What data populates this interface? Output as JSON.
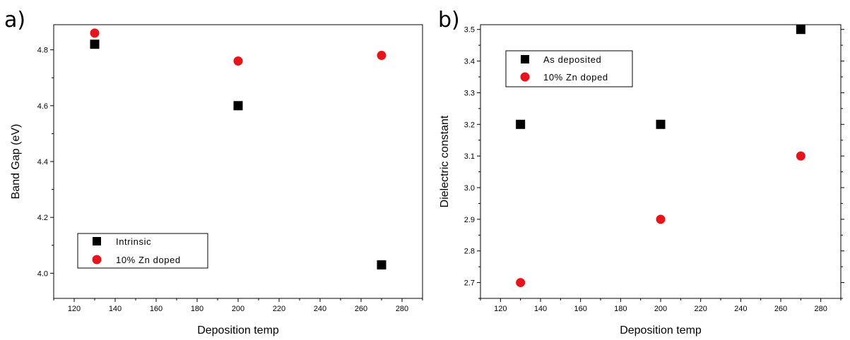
{
  "chart_data": [
    {
      "panel_label": "a)",
      "type": "scatter",
      "xlabel": "Deposition temp",
      "ylabel": "Band Gap (eV)",
      "xlim": [
        110,
        290
      ],
      "ylim": [
        3.91,
        4.89
      ],
      "x_ticks": [
        120,
        140,
        160,
        180,
        200,
        220,
        240,
        260,
        280
      ],
      "y_ticks": [
        4.0,
        4.2,
        4.4,
        4.6,
        4.8
      ],
      "y_tick_labels": [
        "4.0",
        "4.2",
        "4.4",
        "4.6",
        "4.8"
      ],
      "legend_position": "bottom-left",
      "series": [
        {
          "name": "Intrinsic",
          "marker": "square",
          "color": "#000000",
          "x": [
            130,
            200,
            270
          ],
          "y": [
            4.82,
            4.6,
            4.03
          ]
        },
        {
          "name": "10% Zn doped",
          "marker": "circle",
          "color": "#e8141c",
          "x": [
            130,
            200,
            270
          ],
          "y": [
            4.86,
            4.76,
            4.78
          ]
        }
      ]
    },
    {
      "panel_label": "b)",
      "type": "scatter",
      "xlabel": "Deposition temp",
      "ylabel": "Dielectric constant",
      "xlim": [
        110,
        290
      ],
      "ylim": [
        2.65,
        3.515
      ],
      "x_ticks": [
        120,
        140,
        160,
        180,
        200,
        220,
        240,
        260,
        280
      ],
      "y_ticks": [
        2.7,
        2.8,
        2.9,
        3.0,
        3.1,
        3.2,
        3.3,
        3.4,
        3.5
      ],
      "y_tick_labels": [
        "2.7",
        "2.8",
        "2.9",
        "3.0",
        "3.1",
        "3.2",
        "3.3",
        "3.4",
        "3.5"
      ],
      "legend_position": "top-left",
      "series": [
        {
          "name": "As deposited",
          "marker": "square",
          "color": "#000000",
          "x": [
            130,
            200,
            270
          ],
          "y": [
            3.2,
            3.2,
            3.5
          ]
        },
        {
          "name": "10% Zn doped",
          "marker": "circle",
          "color": "#e8141c",
          "x": [
            130,
            200,
            270
          ],
          "y": [
            2.7,
            2.9,
            3.1
          ]
        }
      ]
    }
  ]
}
